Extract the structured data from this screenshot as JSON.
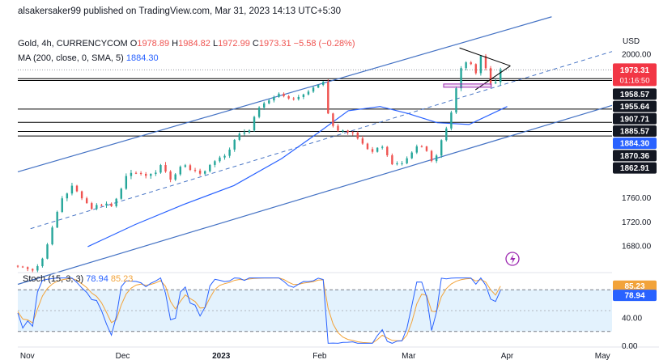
{
  "header": {
    "publisher": "alsakersaker99 published on TradingView.com, Mar 31, 2023 14:13 UTC+5:30",
    "symbol": "Gold, 4h, CURRENCYCOM",
    "open_label": "O",
    "open": "1978.89",
    "high_label": "H",
    "high": "1984.82",
    "low_label": "L",
    "low": "1972.99",
    "close_label": "C",
    "close": "1973.31",
    "change": "−5.58 (−0.28%)",
    "ma_label": "MA (200, close, 0, SMA, 5)",
    "ma_value": "1884.30",
    "currency": "USD"
  },
  "colors": {
    "up": "#26a69a",
    "down": "#ef5350",
    "ma": "#2962ff",
    "channel": "#4472c4",
    "level_line": "#000000",
    "price_badge": "#f23645",
    "stoch_k": "#2962ff",
    "stoch_d": "#f2a33a",
    "stoch_band": "#e3f2fd",
    "box": "#9c27b0"
  },
  "chart_data": [
    {
      "type": "candlestick",
      "timeframe": "4h",
      "x_ticks": [
        "Nov",
        "Dec",
        "2023",
        "Feb",
        "Mar",
        "Apr",
        "May"
      ],
      "x_tick_dates": [
        "2022-11-01",
        "2022-12-01",
        "2023-01-01",
        "2023-02-01",
        "2023-03-01",
        "2023-04-01",
        "2023-05-01"
      ],
      "x_range": [
        "2022-10-29",
        "2023-05-04"
      ],
      "y_ticks": [
        1680,
        1720,
        1760,
        2000
      ],
      "y_range": [
        1640,
        2036
      ],
      "last_price": "1973.31",
      "countdown": "01:16:50",
      "price_path": [
        [
          "2022-10-29",
          1646
        ],
        [
          "2022-11-03",
          1633
        ],
        [
          "2022-11-06",
          1662
        ],
        [
          "2022-11-09",
          1712
        ],
        [
          "2022-11-12",
          1758
        ],
        [
          "2022-11-15",
          1778
        ],
        [
          "2022-11-18",
          1760
        ],
        [
          "2022-11-22",
          1738
        ],
        [
          "2022-11-25",
          1752
        ],
        [
          "2022-11-28",
          1747
        ],
        [
          "2022-12-02",
          1795
        ],
        [
          "2022-12-05",
          1800
        ],
        [
          "2022-12-09",
          1795
        ],
        [
          "2022-12-13",
          1812
        ],
        [
          "2022-12-16",
          1790
        ],
        [
          "2022-12-20",
          1815
        ],
        [
          "2022-12-25",
          1800
        ],
        [
          "2022-12-28",
          1812
        ],
        [
          "2023-01-02",
          1830
        ],
        [
          "2023-01-06",
          1860
        ],
        [
          "2023-01-10",
          1876
        ],
        [
          "2023-01-13",
          1910
        ],
        [
          "2023-01-16",
          1920
        ],
        [
          "2023-01-19",
          1930
        ],
        [
          "2023-01-23",
          1925
        ],
        [
          "2023-01-27",
          1935
        ],
        [
          "2023-01-31",
          1942
        ],
        [
          "2023-02-02",
          1955
        ],
        [
          "2023-02-03",
          1910
        ],
        [
          "2023-02-06",
          1868
        ],
        [
          "2023-02-09",
          1872
        ],
        [
          "2023-02-13",
          1860
        ],
        [
          "2023-02-17",
          1835
        ],
        [
          "2023-02-21",
          1845
        ],
        [
          "2023-02-24",
          1812
        ],
        [
          "2023-02-28",
          1825
        ],
        [
          "2023-03-02",
          1835
        ],
        [
          "2023-03-06",
          1848
        ],
        [
          "2023-03-08",
          1815
        ],
        [
          "2023-03-10",
          1836
        ],
        [
          "2023-03-13",
          1880
        ],
        [
          "2023-03-15",
          1912
        ],
        [
          "2023-03-17",
          1975
        ],
        [
          "2023-03-20",
          1990
        ],
        [
          "2023-03-22",
          1962
        ],
        [
          "2023-03-24",
          2000
        ],
        [
          "2023-03-27",
          1944
        ],
        [
          "2023-03-29",
          1962
        ],
        [
          "2023-03-31",
          1973.31
        ]
      ],
      "moving_average": {
        "name": "MA (200, close, 0, SMA, 5)",
        "path": [
          [
            "2022-11-20",
            1678
          ],
          [
            "2022-12-05",
            1715
          ],
          [
            "2022-12-20",
            1748
          ],
          [
            "2023-01-05",
            1780
          ],
          [
            "2023-01-20",
            1825
          ],
          [
            "2023-02-01",
            1870
          ],
          [
            "2023-02-10",
            1905
          ],
          [
            "2023-02-20",
            1912
          ],
          [
            "2023-03-01",
            1900
          ],
          [
            "2023-03-10",
            1885
          ],
          [
            "2023-03-20",
            1882
          ],
          [
            "2023-04-01",
            1912
          ]
        ]
      },
      "horizontal_levels": [
        1958.57,
        1955.64,
        1907.71,
        1885.57,
        1870.36,
        1862.91
      ],
      "price_labels": [
        {
          "text": "1973.31",
          "kind": "last"
        },
        {
          "text": "1958.57",
          "kind": "level"
        },
        {
          "text": "1955.64",
          "kind": "level"
        },
        {
          "text": "1907.71",
          "kind": "level"
        },
        {
          "text": "1885.57",
          "kind": "level"
        },
        {
          "text": "1884.30",
          "kind": "ma"
        },
        {
          "text": "1870.36",
          "kind": "level"
        },
        {
          "text": "1862.91",
          "kind": "level"
        }
      ],
      "channel": {
        "upper": [
          [
            "2022-10-29",
            1803
          ],
          [
            "2023-04-15",
            2062
          ]
        ],
        "lower": [
          [
            "2022-10-29",
            1615
          ],
          [
            "2023-05-04",
            1914
          ]
        ],
        "middle_dashed": [
          [
            "2022-11-02",
            1708
          ],
          [
            "2023-05-04",
            2004
          ]
        ]
      },
      "triangle": {
        "upper": [
          [
            "2023-03-17",
            2010
          ],
          [
            "2023-04-02",
            1980
          ]
        ],
        "lower": [
          [
            "2023-03-22",
            1940
          ],
          [
            "2023-04-02",
            1980
          ]
        ]
      },
      "box_level": 1947
    },
    {
      "type": "line",
      "name": "Stoch",
      "params": "(15, 3, 3)",
      "k_value": "78.94",
      "d_value": "85.23",
      "y_ticks": [
        0,
        40
      ],
      "y_tick_labels": [
        "0.00",
        "40.00"
      ],
      "bands": [
        80,
        20
      ],
      "y_range": [
        0,
        100
      ]
    }
  ]
}
